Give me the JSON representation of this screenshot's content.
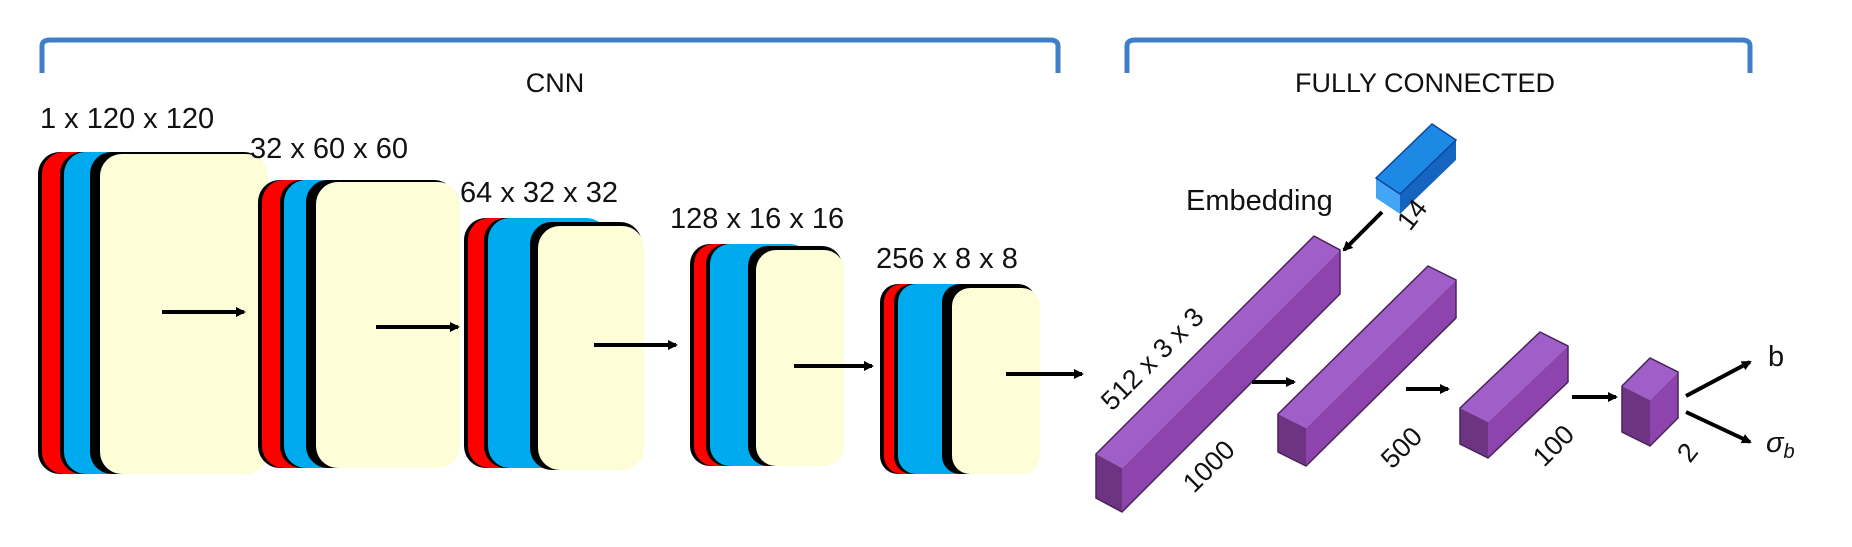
{
  "sections": {
    "cnn": "CNN",
    "fully_connected": "FULLY CONNECTED"
  },
  "cnn_layers": [
    {
      "label": "1 x 120 x 120"
    },
    {
      "label": "32 x 60 x 60"
    },
    {
      "label": "64 x 32 x 32"
    },
    {
      "label": "128 x 16 x 16"
    },
    {
      "label": "256 x 8 x 8"
    }
  ],
  "embedding": {
    "label": "Embedding",
    "size": "14"
  },
  "fc_layers": [
    {
      "label": "512 x 3 x 3",
      "size": "1000"
    },
    {
      "size": "500"
    },
    {
      "size": "100"
    },
    {
      "size": "2"
    }
  ],
  "outputs": {
    "b": "b",
    "sigma": "σ",
    "sigma_sub": "b"
  },
  "colors": {
    "red": "#ff0000",
    "blue": "#00aaee",
    "cream": "#fdfdd8",
    "purple": "#8e44ad",
    "purple_dark": "#5e2a78",
    "bracket": "#3f7fc7",
    "embed_blue": "#1e88e5"
  }
}
